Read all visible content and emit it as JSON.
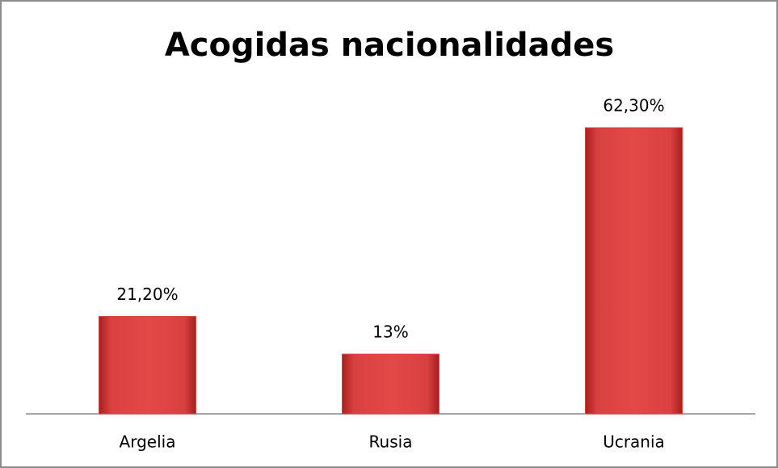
{
  "chart_data": {
    "type": "bar",
    "title": "Acogidas nacionalidades",
    "categories": [
      "Argelia",
      "Rusia",
      "Ucrania"
    ],
    "values": [
      21.2,
      13,
      62.3
    ],
    "value_labels": [
      "21,20%",
      "13%",
      "62,30%"
    ],
    "color": "#d94040"
  }
}
